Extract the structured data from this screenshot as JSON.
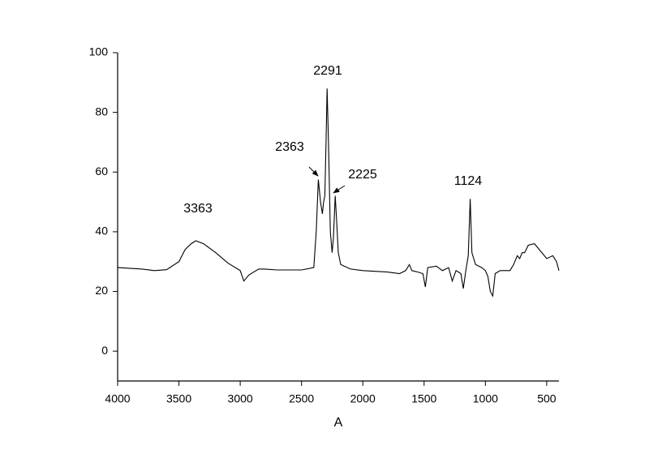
{
  "chart_data": {
    "type": "line",
    "x_label": "A",
    "x": [
      4000,
      3800,
      3700,
      3600,
      3500,
      3450,
      3400,
      3363,
      3300,
      3200,
      3100,
      3000,
      2970,
      2930,
      2850,
      2800,
      2700,
      2500,
      2400,
      2380,
      2363,
      2345,
      2330,
      2320,
      2310,
      2300,
      2291,
      2280,
      2265,
      2250,
      2240,
      2225,
      2215,
      2200,
      2180,
      2100,
      2000,
      1800,
      1700,
      1650,
      1620,
      1600,
      1550,
      1510,
      1490,
      1470,
      1400,
      1350,
      1300,
      1270,
      1240,
      1200,
      1180,
      1160,
      1140,
      1124,
      1110,
      1080,
      1030,
      1000,
      980,
      960,
      940,
      920,
      880,
      800,
      770,
      740,
      720,
      700,
      680,
      650,
      600,
      560,
      500,
      450,
      420,
      400
    ],
    "series": [
      {
        "color": "#000000",
        "values": [
          28,
          27.5,
          27,
          27.3,
          30,
          34,
          36,
          37,
          36,
          33,
          29.5,
          27,
          23.5,
          25.5,
          27.5,
          27.5,
          27.2,
          27.2,
          28,
          40,
          57.5,
          50,
          46,
          50,
          52,
          70,
          88,
          70,
          40,
          33,
          38,
          52,
          45,
          33,
          29,
          27.5,
          27,
          26.5,
          26,
          27,
          29,
          27,
          26.5,
          26,
          21.5,
          28,
          28.5,
          27,
          28,
          23.5,
          27,
          26,
          21,
          27,
          32,
          51,
          33,
          29,
          28,
          27,
          25,
          20,
          18.5,
          26,
          27,
          27,
          29,
          32,
          31,
          33,
          33,
          35.5,
          36,
          34,
          31,
          32,
          30,
          27
        ]
      }
    ],
    "xlim": [
      4000,
      400
    ],
    "xticks": [
      4000,
      3500,
      3000,
      2500,
      2000,
      1500,
      1000,
      500
    ],
    "ylim": [
      -10,
      100
    ],
    "yticks": [
      0,
      20,
      40,
      60,
      80,
      100
    ],
    "annotations": [
      "3363",
      "2363",
      "2291",
      "2225",
      "1124"
    ]
  }
}
